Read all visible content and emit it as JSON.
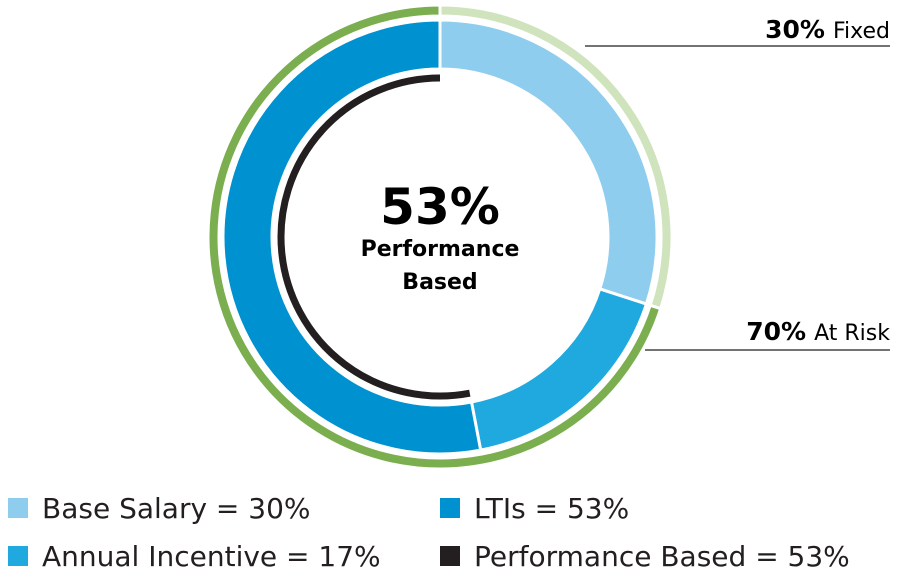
{
  "chart_data": {
    "type": "pie",
    "center": {
      "value": "53%",
      "line1": "Performance",
      "line2": "Based"
    },
    "inner_ring": [
      {
        "name": "Base Salary",
        "value": 30,
        "color": "#8ecdee"
      },
      {
        "name": "Annual Incentive",
        "value": 17,
        "color": "#1fa9df"
      },
      {
        "name": "LTIs",
        "value": 53,
        "color": "#0092d0"
      }
    ],
    "outer_ring": [
      {
        "pct": "30%",
        "label": "Fixed",
        "value": 30,
        "color": "#cfe3bd"
      },
      {
        "pct": "70%",
        "label": "At Risk",
        "value": 70,
        "color": "#7bae4e"
      }
    ],
    "performance_arc": {
      "name": "Performance Based",
      "value": 53,
      "color": "#231f20"
    },
    "legend": [
      {
        "text": "Base Salary = 30%",
        "color": "#8ecdee"
      },
      {
        "text": "LTIs = 53%",
        "color": "#0092d0"
      },
      {
        "text": "Annual Incentive = 17%",
        "color": "#1fa9df"
      },
      {
        "text": "Performance Based = 53%",
        "color": "#231f20"
      }
    ]
  }
}
